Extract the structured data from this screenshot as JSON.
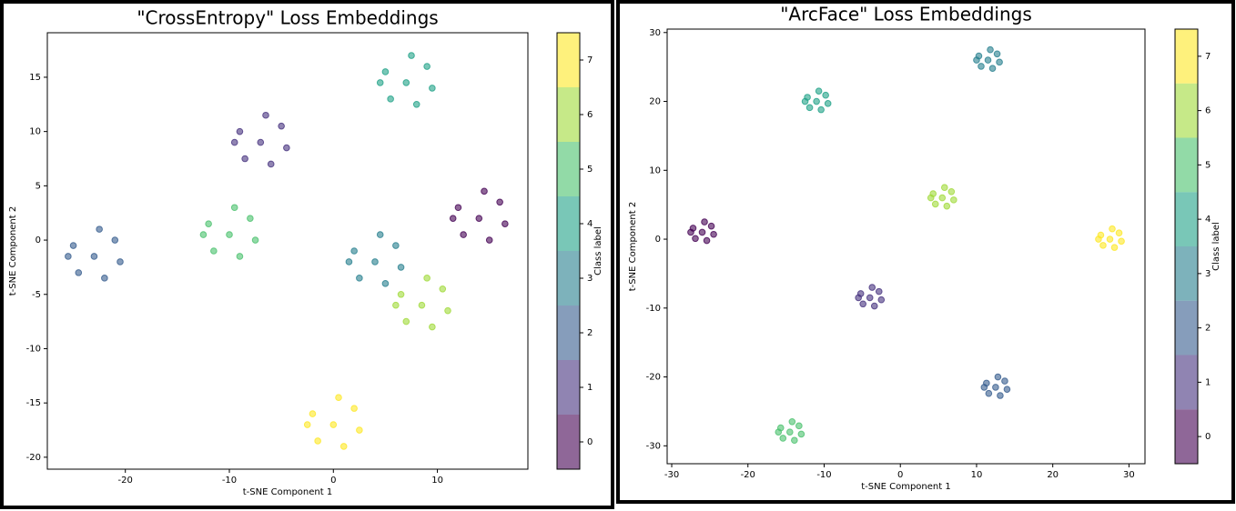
{
  "chart_data": [
    {
      "type": "scatter",
      "title": "\"CrossEntropy\" Loss Embeddings",
      "xlabel": "t-SNE Component 1",
      "ylabel": "t-SNE Component 2",
      "xlim": [
        -27.5,
        18.7
      ],
      "ylim": [
        -21.1,
        19.1
      ],
      "xticks": [
        -20,
        -10,
        0,
        10
      ],
      "yticks": [
        -20,
        -15,
        -10,
        -5,
        0,
        5,
        10,
        15
      ],
      "x": [
        14,
        16,
        12,
        15,
        12.5,
        16.5,
        11.5,
        14.5,
        -7,
        -5,
        -9,
        -6,
        -8.5,
        -4.5,
        -9.5,
        -6.5,
        -23,
        -21,
        -25,
        -22,
        -24.5,
        -20.5,
        -25.5,
        -22.5,
        4,
        6,
        2,
        5,
        2.5,
        6.5,
        1.5,
        4.5,
        7,
        9,
        5,
        8,
        5.5,
        9.5,
        4.5,
        7.5,
        -10,
        -8,
        -12,
        -9,
        -11.5,
        -7.5,
        -12.5,
        -9.5,
        8.5,
        10.5,
        6.5,
        9.5,
        7,
        11,
        6,
        9,
        0,
        2,
        -2,
        1,
        -1.5,
        2.5,
        -2.5,
        0.5
      ],
      "y": [
        2,
        3.5,
        3,
        0,
        0.5,
        1.5,
        2,
        4.5,
        9,
        10.5,
        10,
        7,
        7.5,
        8.5,
        9,
        11.5,
        -1.5,
        0,
        -0.5,
        -3.5,
        -3,
        -2,
        -1.5,
        1,
        -2,
        -0.5,
        -1,
        -4,
        -3.5,
        -2.5,
        -2,
        0.5,
        14.5,
        16,
        15.5,
        12.5,
        13,
        14,
        14.5,
        17,
        0.5,
        2,
        1.5,
        -1.5,
        -1,
        0,
        0.5,
        3,
        -6,
        -4.5,
        -5,
        -8,
        -7.5,
        -6.5,
        -6,
        -3.5,
        -17,
        -15.5,
        -16,
        -19,
        -18.5,
        -17.5,
        -17,
        -14.5
      ],
      "c": [
        0,
        0,
        0,
        0,
        0,
        0,
        0,
        0,
        1,
        1,
        1,
        1,
        1,
        1,
        1,
        1,
        2,
        2,
        2,
        2,
        2,
        2,
        2,
        2,
        3,
        3,
        3,
        3,
        3,
        3,
        3,
        3,
        4,
        4,
        4,
        4,
        4,
        4,
        4,
        4,
        5,
        5,
        5,
        5,
        5,
        5,
        5,
        5,
        6,
        6,
        6,
        6,
        6,
        6,
        6,
        6,
        7,
        7,
        7,
        7,
        7,
        7,
        7,
        7
      ],
      "colorbar": {
        "label": "Class label",
        "lim": [
          -0.5,
          7.5
        ],
        "ticks": [
          0,
          1,
          2,
          3,
          4,
          5,
          6,
          7
        ],
        "colors": [
          "#440154",
          "#46327e",
          "#365c8d",
          "#277f8e",
          "#1fa187",
          "#4ac16d",
          "#a0da39",
          "#fde725"
        ]
      }
    },
    {
      "type": "scatter",
      "title": "\"ArcFace\" Loss Embeddings",
      "xlabel": "t-SNE Component 1",
      "ylabel": "t-SNE Component 2",
      "xlim": [
        -30.6,
        32.1
      ],
      "ylim": [
        -32.6,
        30.5
      ],
      "xticks": [
        -30,
        -20,
        -10,
        0,
        10,
        20,
        30
      ],
      "yticks": [
        -30,
        -20,
        -10,
        0,
        10,
        20,
        30
      ],
      "x": [
        -26,
        -24.8,
        -27.2,
        -25.4,
        -26.9,
        -24.5,
        -27.5,
        -25.7,
        -4,
        -2.8,
        -5.2,
        -3.4,
        -4.9,
        -2.5,
        -5.5,
        -3.7,
        12.5,
        13.7,
        11.3,
        13.1,
        11.6,
        14,
        11,
        12.8,
        11.5,
        12.7,
        10.3,
        12.1,
        10.6,
        13,
        10,
        11.8,
        -11,
        -9.8,
        -12.2,
        -10.4,
        -11.9,
        -9.5,
        -12.5,
        -10.7,
        -14.5,
        -13.3,
        -15.7,
        -13.9,
        -15.4,
        -13,
        -16,
        -14.2,
        5.5,
        6.7,
        4.3,
        6.1,
        4.6,
        7,
        4,
        5.8,
        27.5,
        28.7,
        26.3,
        28.1,
        26.6,
        29,
        26,
        27.8
      ],
      "y": [
        1,
        1.9,
        1.6,
        -0.2,
        0.1,
        0.7,
        1,
        2.5,
        -8.5,
        -7.6,
        -7.9,
        -9.7,
        -9.4,
        -8.8,
        -8.5,
        -7,
        -21.5,
        -20.6,
        -20.9,
        -22.7,
        -22.4,
        -21.8,
        -21.5,
        -20,
        26,
        26.9,
        26.6,
        24.8,
        25.1,
        25.7,
        26,
        27.5,
        20,
        20.9,
        20.6,
        18.8,
        19.1,
        19.7,
        20,
        21.5,
        -28,
        -27.1,
        -27.4,
        -29.2,
        -28.9,
        -28.3,
        -28,
        -26.5,
        6,
        6.9,
        6.6,
        4.8,
        5.1,
        5.7,
        6,
        7.5,
        0,
        0.9,
        0.6,
        -1.2,
        -0.9,
        -0.3,
        0,
        1.5
      ],
      "c": [
        0,
        0,
        0,
        0,
        0,
        0,
        0,
        0,
        1,
        1,
        1,
        1,
        1,
        1,
        1,
        1,
        2,
        2,
        2,
        2,
        2,
        2,
        2,
        2,
        3,
        3,
        3,
        3,
        3,
        3,
        3,
        3,
        4,
        4,
        4,
        4,
        4,
        4,
        4,
        4,
        5,
        5,
        5,
        5,
        5,
        5,
        5,
        5,
        6,
        6,
        6,
        6,
        6,
        6,
        6,
        6,
        7,
        7,
        7,
        7,
        7,
        7,
        7,
        7
      ],
      "colorbar": {
        "label": "Class label",
        "lim": [
          -0.5,
          7.5
        ],
        "ticks": [
          0,
          1,
          2,
          3,
          4,
          5,
          6,
          7
        ],
        "colors": [
          "#440154",
          "#46327e",
          "#365c8d",
          "#277f8e",
          "#1fa187",
          "#4ac16d",
          "#a0da39",
          "#fde725"
        ]
      }
    }
  ]
}
